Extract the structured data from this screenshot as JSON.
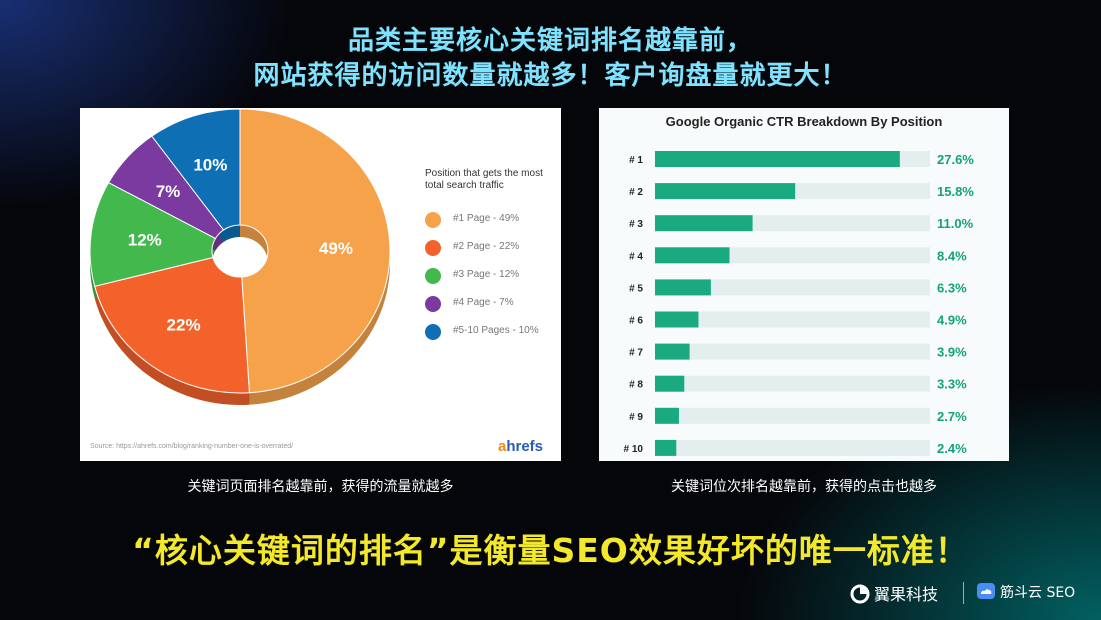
{
  "headline": {
    "line1": "品类主要核心关键词排名越靠前，",
    "line2": "网站获得的访问数量就越多！客户询盘量就更大！"
  },
  "left_panel": {
    "legend_title": "Position that gets the most total search traffic",
    "source": "Source:   https://ahrefs.com/blog/ranking-number-one-is-overrated/",
    "brand_a": "a",
    "brand_rest": "hrefs",
    "caption": "关键词页面排名越靠前，获得的流量就越多"
  },
  "right_panel": {
    "title": "Google Organic CTR Breakdown By Position",
    "caption": "关键词位次排名越靠前，获得的点击也越多"
  },
  "bottom_line": "“核心关键词的排名”是衡量SEO效果好坏的唯一标准！",
  "footer": {
    "left_logo": "翼果科技",
    "right_logo": "筋斗云 SEO"
  },
  "colors": {
    "title_cyan": "#7fe3ff",
    "bottom_yellow": "#f3e92a",
    "ctr_bar": "#1aaa82",
    "ctr_track": "#e3eeee",
    "ctr_value": "#12a37c"
  },
  "chart_data": [
    {
      "type": "pie",
      "title": "",
      "legend_title": "Position that gets the most total search traffic",
      "legend_position": "right",
      "slices": [
        {
          "label": "#1 Page - 49%",
          "value": 49,
          "display": "49%",
          "color": "#f6a24b"
        },
        {
          "label": "#2 Page - 22%",
          "value": 22,
          "display": "22%",
          "color": "#f4622c"
        },
        {
          "label": "#3 Page - 12%",
          "value": 12,
          "display": "12%",
          "color": "#42b84d"
        },
        {
          "label": "#4 Page - 7%",
          "value": 7,
          "display": "7%",
          "color": "#7a3aa0"
        },
        {
          "label": "#5-10 Pages  - 10%",
          "value": 10,
          "display": "10%",
          "color": "#0f6fb5"
        }
      ]
    },
    {
      "type": "bar",
      "orientation": "horizontal",
      "title": "Google Organic CTR Breakdown By Position",
      "categories": [
        "# 1",
        "# 2",
        "# 3",
        "# 4",
        "# 5",
        "# 6",
        "# 7",
        "# 8",
        "# 9",
        "# 10"
      ],
      "values": [
        27.6,
        15.8,
        11.0,
        8.4,
        6.3,
        4.9,
        3.9,
        3.3,
        2.7,
        2.4
      ],
      "value_labels": [
        "27.6%",
        "15.8%",
        "11.0%",
        "8.4%",
        "6.3%",
        "4.9%",
        "3.9%",
        "3.3%",
        "2.7%",
        "2.4%"
      ],
      "xlim": [
        0,
        31
      ]
    }
  ]
}
